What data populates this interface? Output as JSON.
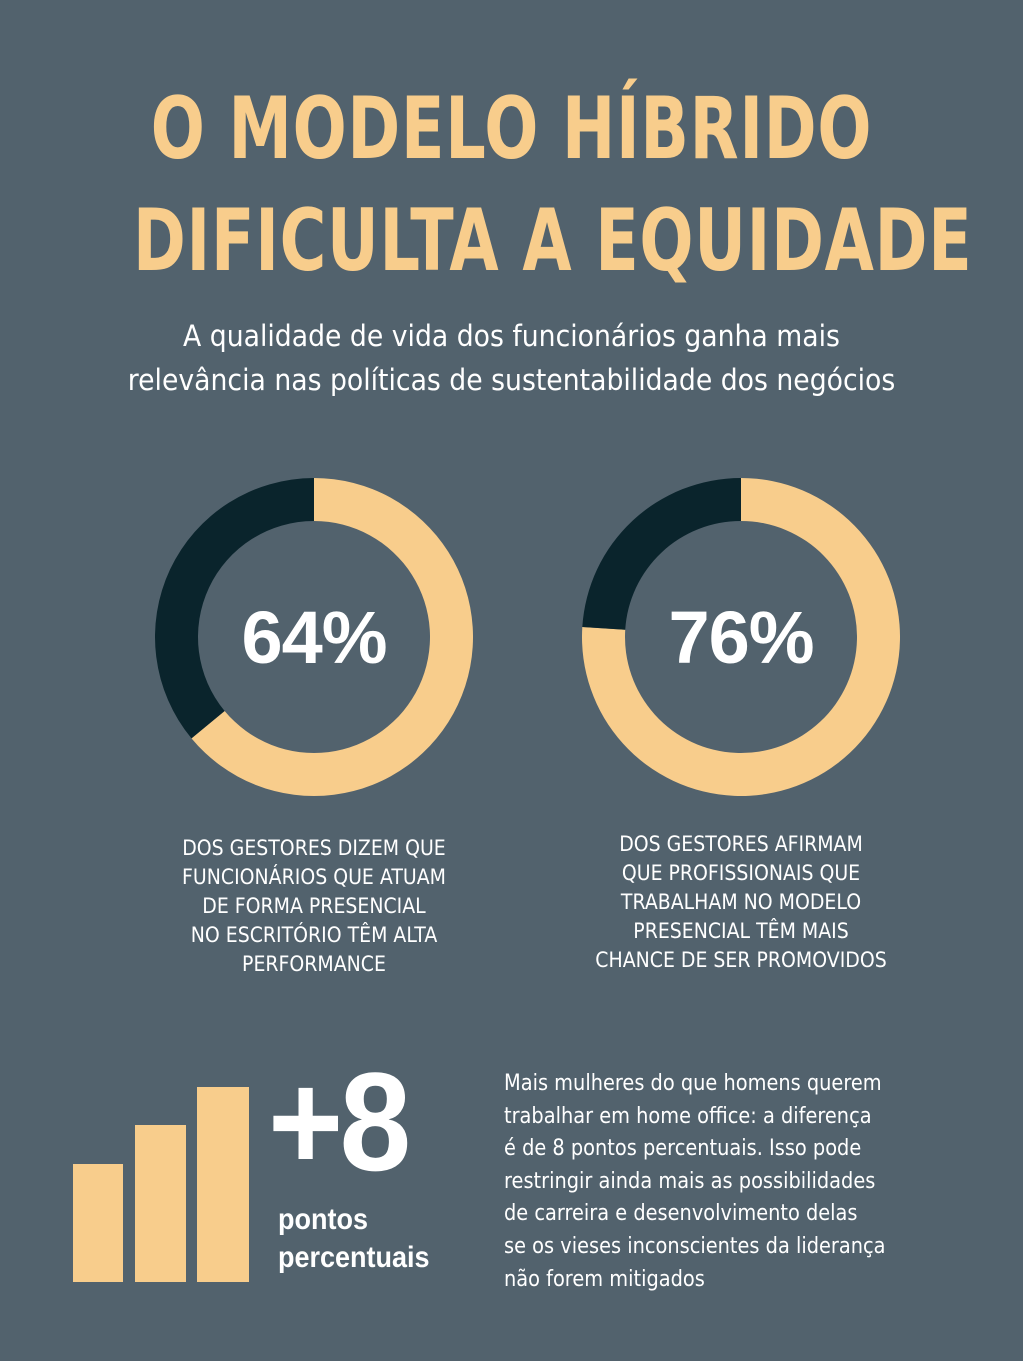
{
  "title": {
    "line1": "O MODELO HÍBRIDO",
    "line2": "DIFICULTA A EQUIDADE"
  },
  "subtitle": {
    "line1": "A qualidade de vida dos funcionários ganha mais",
    "line2": "relevância nas políticas de sustentabilidade dos negócios"
  },
  "colors": {
    "background": "#52626d",
    "accent": "#f8cd8c",
    "donut_remainder": "#0a242c",
    "text": "#ffffff"
  },
  "chart_data": [
    {
      "type": "pie",
      "variant": "donut",
      "value": 64,
      "remainder": 36,
      "label": "64%",
      "caption": [
        "DOS GESTORES DIZEM QUE",
        "FUNCIONÁRIOS QUE ATUAM",
        "DE FORMA PRESENCIAL",
        "NO ESCRITÓRIO TÊM ALTA",
        "PERFORMANCE"
      ]
    },
    {
      "type": "pie",
      "variant": "donut",
      "value": 76,
      "remainder": 24,
      "label": "76%",
      "caption": [
        "DOS GESTORES AFIRMAM",
        "QUE PROFISSIONAIS QUE",
        "TRABALHAM NO MODELO",
        "PRESENCIAL TÊM MAIS",
        "CHANCE DE SER PROMOVIDOS"
      ]
    },
    {
      "type": "bar",
      "icon": "ascending-bars-icon",
      "values": [
        1,
        2,
        3
      ],
      "headline": "+8",
      "unit_line1": "pontos",
      "unit_line2": "percentuais"
    }
  ],
  "paragraph": [
    "Mais mulheres do que homens querem",
    "trabalhar em home office: a diferença",
    "é de 8 pontos percentuais. Isso pode",
    "restringir ainda mais as possibilidades",
    "de carreira e desenvolvimento delas",
    "se os vieses inconscientes da liderança",
    "não forem mitigados"
  ]
}
